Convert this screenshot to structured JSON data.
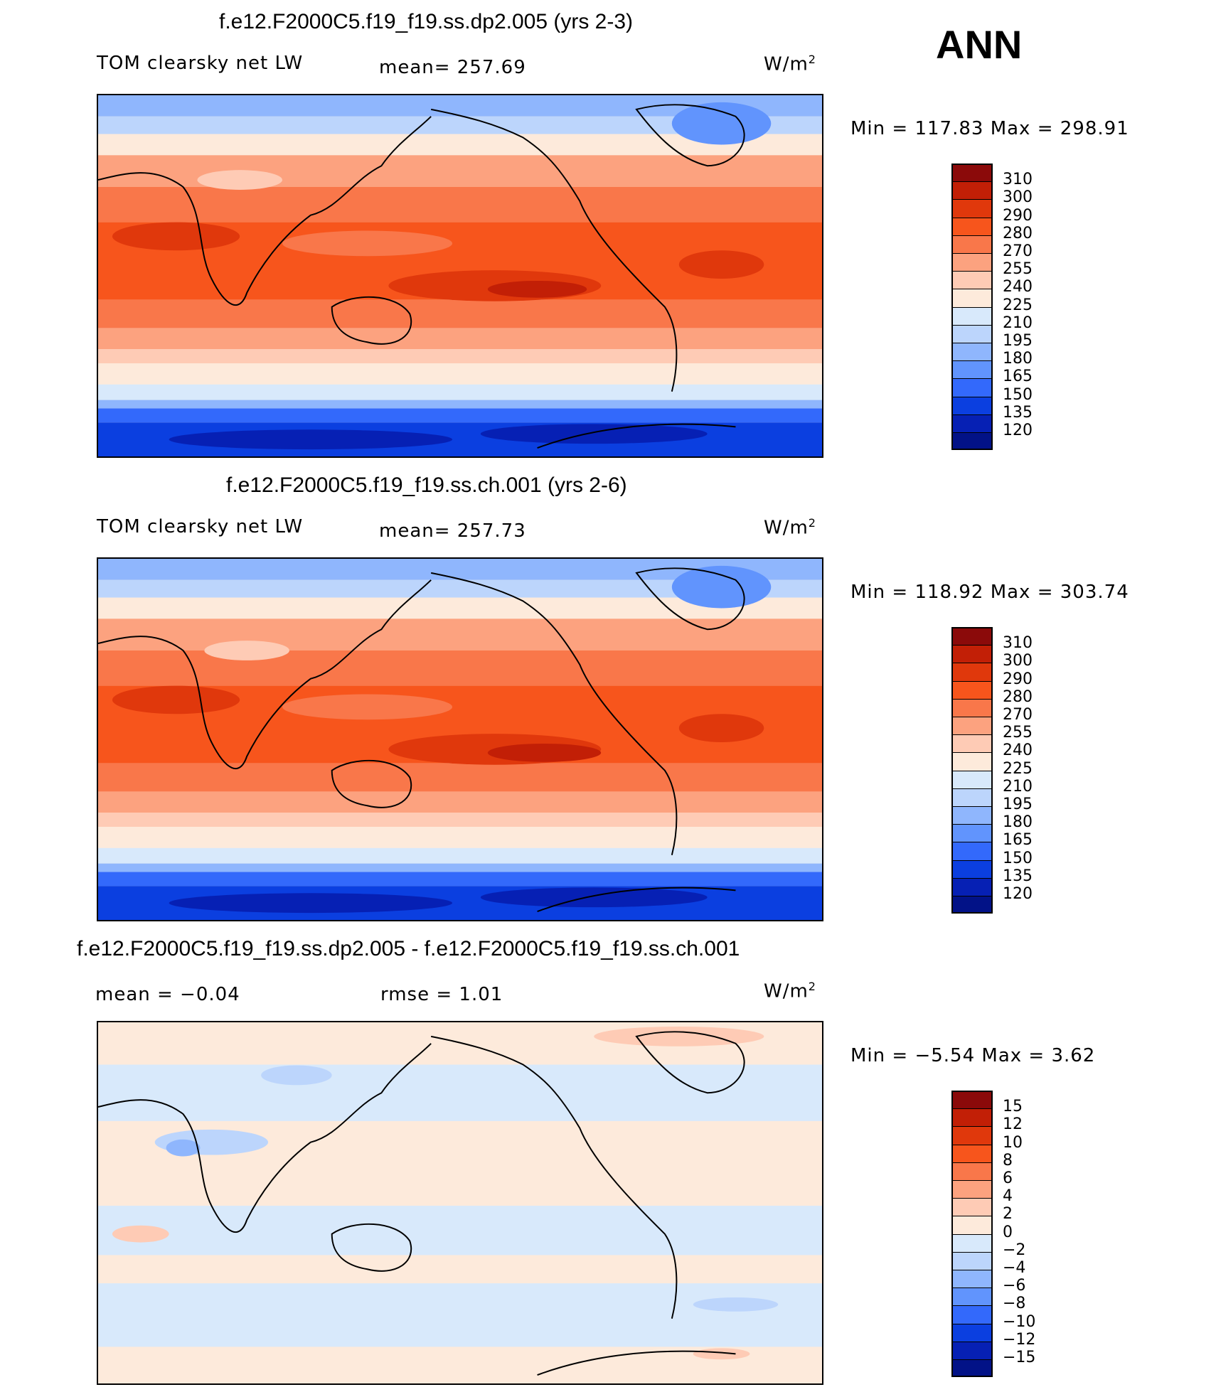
{
  "season": "ANN",
  "panels": [
    {
      "title": "f.e12.F2000C5.f19_f19.ss.dp2.005 (yrs 2-3)",
      "left_label": "TOM clearsky net LW",
      "stat_label": "mean= 257.69",
      "units": "W/m",
      "units_sup": "2",
      "minmax": "Min  =  117.83  Max  =  298.91",
      "levels": [
        "310",
        "300",
        "290",
        "280",
        "270",
        "255",
        "240",
        "225",
        "210",
        "195",
        "180",
        "165",
        "150",
        "135",
        "120"
      ],
      "colors": [
        "#8b0a0a",
        "#c21f06",
        "#e0380c",
        "#f7551c",
        "#f9774a",
        "#fca27f",
        "#fecbb5",
        "#fdeadb",
        "#d8e9fb",
        "#bcd5fc",
        "#8fb6fd",
        "#6194fd",
        "#3369fb",
        "#0b3fe0",
        "#0620b4",
        "#021287"
      ]
    },
    {
      "title": "f.e12.F2000C5.f19_f19.ss.ch.001 (yrs 2-6)",
      "left_label": "TOM clearsky net LW",
      "stat_label": "mean= 257.73",
      "units": "W/m",
      "units_sup": "2",
      "minmax": "Min  =  118.92  Max  =  303.74",
      "levels": [
        "310",
        "300",
        "290",
        "280",
        "270",
        "255",
        "240",
        "225",
        "210",
        "195",
        "180",
        "165",
        "150",
        "135",
        "120"
      ],
      "colors": [
        "#8b0a0a",
        "#c21f06",
        "#e0380c",
        "#f7551c",
        "#f9774a",
        "#fca27f",
        "#fecbb5",
        "#fdeadb",
        "#d8e9fb",
        "#bcd5fc",
        "#8fb6fd",
        "#6194fd",
        "#3369fb",
        "#0b3fe0",
        "#0620b4",
        "#021287"
      ]
    },
    {
      "title": "f.e12.F2000C5.f19_f19.ss.dp2.005 - f.e12.F2000C5.f19_f19.ss.ch.001",
      "left_label": "mean  =    −0.04",
      "stat_label": "rmse  =     1.01",
      "units": "W/m",
      "units_sup": "2",
      "minmax": "Min  =    −5.54  Max  =      3.62",
      "levels": [
        "15",
        "12",
        "10",
        "8",
        "6",
        "4",
        "2",
        "0",
        "−2",
        "−4",
        "−6",
        "−8",
        "−10",
        "−12",
        "−15"
      ],
      "colors": [
        "#8b0a0a",
        "#c21f06",
        "#e0380c",
        "#f7551c",
        "#f9774a",
        "#fca27f",
        "#fecbb5",
        "#fdeadb",
        "#d8e9fb",
        "#bcd5fc",
        "#8fb6fd",
        "#6194fd",
        "#3369fb",
        "#0b3fe0",
        "#0620b4",
        "#021287"
      ]
    }
  ]
}
